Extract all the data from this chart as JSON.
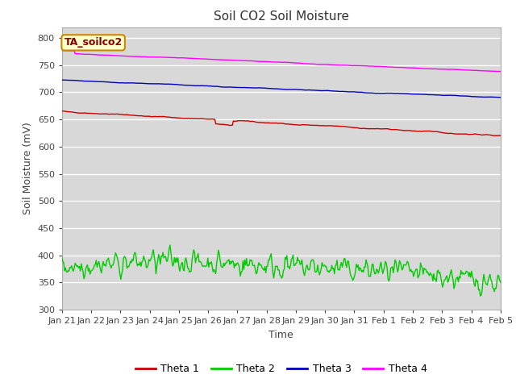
{
  "title": "Soil CO2 Soil Moisture",
  "xlabel": "Time",
  "ylabel": "Soil Moisture (mV)",
  "ylim": [
    300,
    820
  ],
  "yticks": [
    300,
    350,
    400,
    450,
    500,
    550,
    600,
    650,
    700,
    750,
    800
  ],
  "plot_bg_color": "#d8d8d8",
  "figure_bg": "#ffffff",
  "annotation_text": "TA_soilco2",
  "annotation_bg": "#ffffcc",
  "annotation_border": "#cc8800",
  "legend_entries": [
    "Theta 1",
    "Theta 2",
    "Theta 3",
    "Theta 4"
  ],
  "line_colors": [
    "#cc0000",
    "#00cc00",
    "#0000bb",
    "#ff00ff"
  ],
  "x_tick_labels": [
    "Jan 21",
    "Jan 22",
    "Jan 23",
    "Jan 24",
    "Jan 25",
    "Jan 26",
    "Jan 27",
    "Jan 28",
    "Jan 29",
    "Jan 30",
    "Jan 31",
    "Feb 1",
    "Feb 2",
    "Feb 3",
    "Feb 4",
    "Feb 5"
  ],
  "n_points": 500,
  "title_fontsize": 11,
  "axis_label_fontsize": 9,
  "tick_fontsize": 8
}
